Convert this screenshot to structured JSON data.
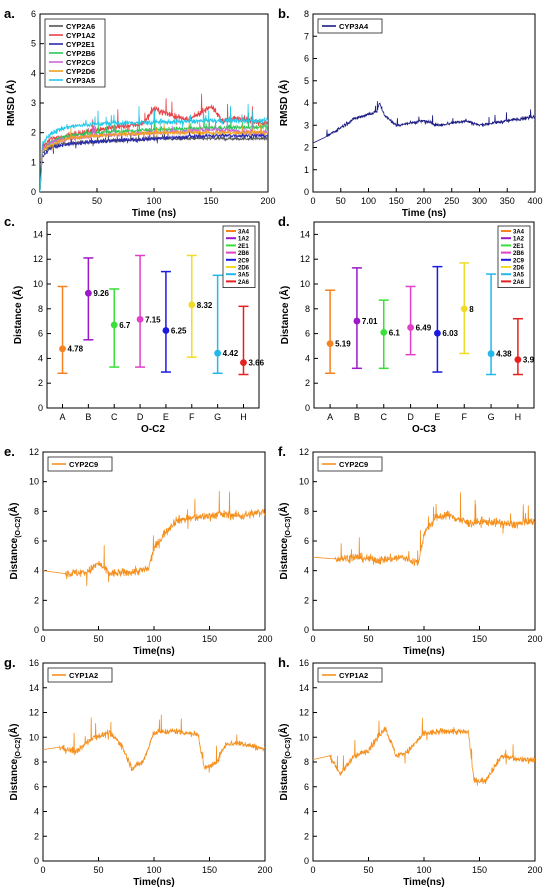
{
  "figure": {
    "panels": [
      {
        "id": "a",
        "letter": "a.",
        "xlabel": "Time (ns)",
        "ylabel": "RMSD (Å)"
      },
      {
        "id": "b",
        "letter": "b.",
        "xlabel": "Time (ns)",
        "ylabel": "RMSD (Å)"
      },
      {
        "id": "c",
        "letter": "c.",
        "xlabel": "O-C2",
        "ylabel": "Distance (Å)"
      },
      {
        "id": "d",
        "letter": "d.",
        "xlabel": "O-C3",
        "ylabel": "Distance (Å)"
      },
      {
        "id": "e",
        "letter": "e.",
        "xlabel": "Time(ns)",
        "ylabel": "Distance(O-C2)(Å)"
      },
      {
        "id": "f",
        "letter": "f.",
        "xlabel": "Time(ns)",
        "ylabel": "Distance(O-C3)(Å)"
      },
      {
        "id": "g",
        "letter": "g.",
        "xlabel": "Time(ns)",
        "ylabel": "Distance(O-C2)(Å)"
      },
      {
        "id": "h",
        "letter": "h.",
        "xlabel": "Time(ns)",
        "ylabel": "Distance(O-C3)(Å)"
      }
    ]
  },
  "chart_data": [
    {
      "panel": "a",
      "type": "line",
      "xlabel": "Time (ns)",
      "ylabel": "RMSD (Å)",
      "xlim": [
        0,
        200
      ],
      "ylim": [
        0,
        6
      ],
      "xticks": [
        0,
        50,
        100,
        150,
        200
      ],
      "yticks": [
        0,
        1,
        2,
        3,
        4,
        5,
        6
      ],
      "legend_position": "top-left",
      "series": [
        {
          "name": "CYP2A6",
          "color": "#555555",
          "level": 1.8,
          "noise": 0.1,
          "x": [
            0,
            2,
            10,
            25,
            50,
            100,
            150,
            200
          ],
          "y": [
            0,
            1.3,
            1.55,
            1.65,
            1.7,
            1.8,
            1.8,
            1.8
          ]
        },
        {
          "name": "CYP1A2",
          "color": "#e8454a",
          "level": 2.3,
          "noise": 0.18,
          "x": [
            0,
            2,
            10,
            25,
            50,
            90,
            100,
            130,
            150,
            160,
            175,
            200
          ],
          "y": [
            0,
            1.5,
            1.8,
            1.9,
            2.1,
            2.3,
            2.8,
            2.4,
            2.9,
            2.4,
            2.5,
            2.3
          ]
        },
        {
          "name": "CYP2E1",
          "color": "#2a2ab0",
          "level": 1.9,
          "noise": 0.12,
          "x": [
            0,
            2,
            10,
            25,
            50,
            100,
            150,
            200
          ],
          "y": [
            0,
            1.2,
            1.5,
            1.6,
            1.7,
            1.8,
            1.9,
            1.9
          ]
        },
        {
          "name": "CYP2B6",
          "color": "#2fc85a",
          "level": 2.1,
          "noise": 0.13,
          "x": [
            0,
            2,
            10,
            25,
            50,
            100,
            150,
            200
          ],
          "y": [
            0,
            1.4,
            1.7,
            1.9,
            2.0,
            2.1,
            2.15,
            2.2
          ]
        },
        {
          "name": "CYP2C9",
          "color": "#d067d8",
          "level": 2.05,
          "noise": 0.13,
          "x": [
            0,
            2,
            10,
            25,
            50,
            100,
            150,
            200
          ],
          "y": [
            0,
            1.4,
            1.7,
            1.8,
            1.9,
            2.0,
            2.1,
            2.0
          ]
        },
        {
          "name": "CYP2D6",
          "color": "#f0a020",
          "level": 2.0,
          "noise": 0.12,
          "x": [
            0,
            2,
            10,
            25,
            50,
            100,
            150,
            200
          ],
          "y": [
            0,
            1.4,
            1.6,
            1.8,
            1.9,
            2.0,
            2.0,
            2.0
          ]
        },
        {
          "name": "CYP3A5",
          "color": "#25c8e8",
          "level": 2.35,
          "noise": 0.15,
          "x": [
            0,
            2,
            10,
            25,
            50,
            100,
            150,
            200
          ],
          "y": [
            0,
            1.6,
            2.0,
            2.2,
            2.3,
            2.35,
            2.4,
            2.4
          ]
        }
      ]
    },
    {
      "panel": "b",
      "type": "line",
      "xlabel": "Time (ns)",
      "ylabel": "RMSD (Å)",
      "xlim": [
        0,
        400
      ],
      "ylim": [
        0,
        8
      ],
      "xticks": [
        0,
        50,
        100,
        150,
        200,
        250,
        300,
        350,
        400
      ],
      "yticks": [
        0,
        1,
        2,
        3,
        4,
        5,
        6,
        7,
        8
      ],
      "legend_position": "top-left",
      "series": [
        {
          "name": "CYP3A4",
          "color": "#1c1c82",
          "noise": 0.13,
          "x": [
            0,
            25,
            50,
            75,
            100,
            115,
            120,
            130,
            150,
            175,
            200,
            225,
            250,
            275,
            300,
            325,
            350,
            375,
            400
          ],
          "y": [
            2.2,
            2.5,
            2.9,
            3.3,
            3.5,
            3.6,
            4.0,
            3.4,
            3.0,
            3.1,
            3.2,
            3.0,
            3.1,
            3.2,
            3.0,
            3.1,
            3.2,
            3.3,
            3.4
          ]
        }
      ]
    },
    {
      "panel": "c",
      "type": "errorbar",
      "xlabel": "O-C2",
      "ylabel": "Distance (Å)",
      "ylim": [
        0,
        15
      ],
      "yticks": [
        0,
        2,
        4,
        6,
        8,
        10,
        12,
        14
      ],
      "categories": [
        "A",
        "B",
        "C",
        "D",
        "E",
        "F",
        "G",
        "H"
      ],
      "legend_position": "top-right",
      "series": [
        {
          "name": "3A4",
          "color": "#f5821f",
          "mean": 4.78,
          "min": 2.8,
          "max": 9.8,
          "label": "4.78"
        },
        {
          "name": "1A2",
          "color": "#9b19c8",
          "mean": 9.26,
          "min": 5.5,
          "max": 12.1,
          "label": "9.26"
        },
        {
          "name": "2E1",
          "color": "#3ae03a",
          "mean": 6.7,
          "min": 3.3,
          "max": 9.6,
          "label": "6.7"
        },
        {
          "name": "2B6",
          "color": "#e040c8",
          "mean": 7.15,
          "min": 3.3,
          "max": 12.3,
          "label": "7.15"
        },
        {
          "name": "2C9",
          "color": "#1a1ae0",
          "mean": 6.25,
          "min": 2.9,
          "max": 11.0,
          "label": "6.25"
        },
        {
          "name": "2D6",
          "color": "#f0dc28",
          "mean": 8.32,
          "min": 4.1,
          "max": 12.3,
          "label": "8.32"
        },
        {
          "name": "3A5",
          "color": "#22b8e8",
          "mean": 4.42,
          "min": 2.8,
          "max": 10.7,
          "label": "4.42"
        },
        {
          "name": "2A6",
          "color": "#e42020",
          "mean": 3.66,
          "min": 2.7,
          "max": 8.2,
          "label": "3.66"
        }
      ]
    },
    {
      "panel": "d",
      "type": "errorbar",
      "xlabel": "O-C3",
      "ylabel": "Distance (Å)",
      "ylim": [
        0,
        15
      ],
      "yticks": [
        0,
        2,
        4,
        6,
        8,
        10,
        12,
        14
      ],
      "categories": [
        "A",
        "B",
        "C",
        "D",
        "E",
        "F",
        "G",
        "H"
      ],
      "legend_position": "top-right",
      "series": [
        {
          "name": "3A4",
          "color": "#f5821f",
          "mean": 5.19,
          "min": 2.8,
          "max": 9.5,
          "label": "5.19"
        },
        {
          "name": "1A2",
          "color": "#9b19c8",
          "mean": 7.01,
          "min": 3.2,
          "max": 11.3,
          "label": "7.01"
        },
        {
          "name": "2E1",
          "color": "#3ae03a",
          "mean": 6.1,
          "min": 3.2,
          "max": 8.7,
          "label": "6.1"
        },
        {
          "name": "2B6",
          "color": "#e040c8",
          "mean": 6.49,
          "min": 4.3,
          "max": 9.8,
          "label": "6.49"
        },
        {
          "name": "2C9",
          "color": "#1a1ae0",
          "mean": 6.03,
          "min": 2.9,
          "max": 11.4,
          "label": "6.03"
        },
        {
          "name": "2D6",
          "color": "#f0dc28",
          "mean": 8.0,
          "min": 4.4,
          "max": 11.7,
          "label": "8"
        },
        {
          "name": "3A5",
          "color": "#22b8e8",
          "mean": 4.38,
          "min": 2.7,
          "max": 10.8,
          "label": "4.38"
        },
        {
          "name": "2A6",
          "color": "#e42020",
          "mean": 3.9,
          "min": 2.7,
          "max": 7.2,
          "label": "3.9"
        }
      ]
    },
    {
      "panel": "e",
      "type": "line",
      "xlabel": "Time(ns)",
      "ylabel": "Distance(O-C2)(Å)",
      "xlim": [
        0,
        200
      ],
      "ylim": [
        0,
        12
      ],
      "xticks": [
        0,
        50,
        100,
        150,
        200
      ],
      "yticks": [
        0,
        2,
        4,
        6,
        8,
        10,
        12
      ],
      "legend_position": "top-left",
      "series": [
        {
          "name": "CYP2C9",
          "color": "#f5901e",
          "noise": 0.5,
          "x": [
            0,
            20,
            40,
            50,
            60,
            80,
            95,
            100,
            105,
            110,
            120,
            140,
            160,
            180,
            200
          ],
          "y": [
            4.0,
            3.8,
            3.9,
            4.5,
            3.8,
            3.9,
            4.1,
            5.5,
            6.0,
            6.6,
            7.4,
            7.6,
            7.8,
            7.7,
            8.0
          ]
        }
      ]
    },
    {
      "panel": "f",
      "type": "line",
      "xlabel": "Time(ns)",
      "ylabel": "Distance(O-C3)(Å)",
      "xlim": [
        0,
        200
      ],
      "ylim": [
        0,
        12
      ],
      "xticks": [
        0,
        50,
        100,
        150,
        200
      ],
      "yticks": [
        0,
        2,
        4,
        6,
        8,
        10,
        12
      ],
      "legend_position": "top-left",
      "series": [
        {
          "name": "CYP2C9",
          "color": "#f5901e",
          "noise": 0.5,
          "x": [
            0,
            20,
            40,
            60,
            80,
            95,
            100,
            110,
            120,
            140,
            160,
            180,
            200
          ],
          "y": [
            4.9,
            4.8,
            4.9,
            4.7,
            4.9,
            4.5,
            6.5,
            7.5,
            7.8,
            7.2,
            7.3,
            7.1,
            7.3
          ]
        }
      ]
    },
    {
      "panel": "g",
      "type": "line",
      "xlabel": "Time(ns)",
      "ylabel": "Distance(O-C2)(Å)",
      "xlim": [
        0,
        200
      ],
      "ylim": [
        0,
        16
      ],
      "xticks": [
        0,
        50,
        100,
        150,
        200
      ],
      "yticks": [
        0,
        2,
        4,
        6,
        8,
        10,
        12,
        14,
        16
      ],
      "legend_position": "top-left",
      "series": [
        {
          "name": "CYP1A2",
          "color": "#f5901e",
          "noise": 0.45,
          "x": [
            0,
            15,
            30,
            45,
            60,
            70,
            80,
            90,
            100,
            120,
            140,
            145,
            155,
            165,
            180,
            200
          ],
          "y": [
            9.0,
            9.2,
            8.8,
            10.0,
            10.3,
            9.5,
            7.5,
            8.0,
            10.4,
            10.5,
            10.2,
            7.5,
            7.8,
            9.5,
            9.5,
            9.0
          ]
        }
      ]
    },
    {
      "panel": "h",
      "type": "line",
      "xlabel": "Time(ns)",
      "ylabel": "Distance(O-C3)(Å)",
      "xlim": [
        0,
        200
      ],
      "ylim": [
        0,
        16
      ],
      "xticks": [
        0,
        50,
        100,
        150,
        200
      ],
      "yticks": [
        0,
        2,
        4,
        6,
        8,
        10,
        12,
        14,
        16
      ],
      "legend_position": "top-left",
      "series": [
        {
          "name": "CYP1A2",
          "color": "#f5901e",
          "noise": 0.45,
          "x": [
            0,
            15,
            25,
            35,
            50,
            65,
            75,
            85,
            100,
            120,
            140,
            145,
            155,
            170,
            185,
            200
          ],
          "y": [
            8.2,
            8.5,
            7.0,
            8.3,
            9.0,
            10.8,
            8.5,
            8.8,
            10.3,
            10.5,
            10.4,
            6.5,
            6.5,
            8.5,
            8.2,
            8.2
          ]
        }
      ]
    }
  ]
}
